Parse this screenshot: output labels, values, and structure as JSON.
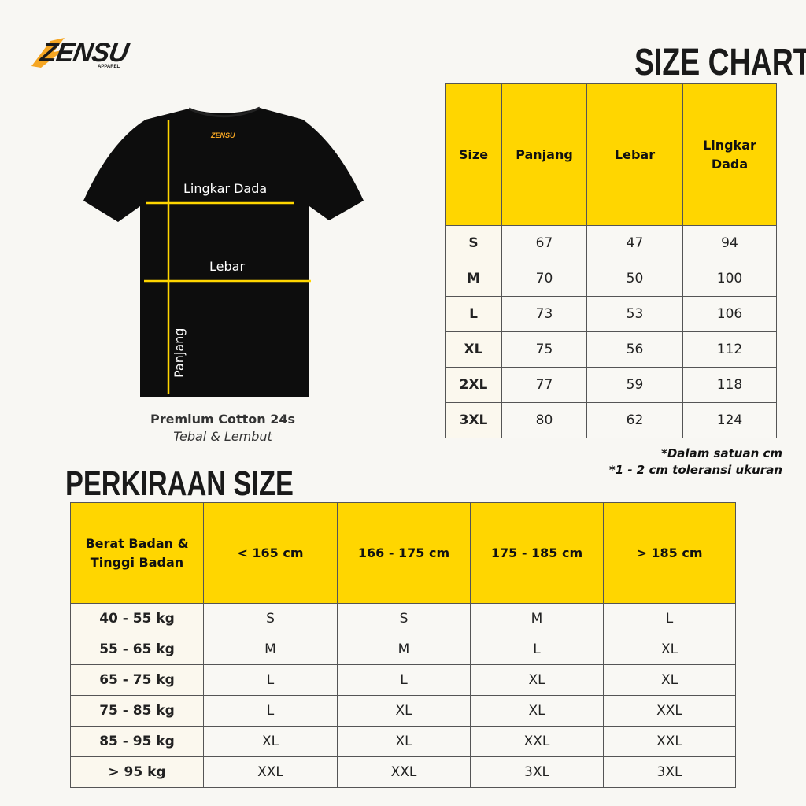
{
  "brand": {
    "name": "ZENSU",
    "sub": "APPAREL"
  },
  "size_chart": {
    "title": "SIZE CHART",
    "headers": [
      "Size",
      "Panjang",
      "Lebar",
      "Lingkar Dada"
    ],
    "rows": [
      [
        "S",
        "67",
        "47",
        "94"
      ],
      [
        "M",
        "70",
        "50",
        "100"
      ],
      [
        "L",
        "73",
        "53",
        "106"
      ],
      [
        "XL",
        "75",
        "56",
        "112"
      ],
      [
        "2XL",
        "77",
        "59",
        "118"
      ],
      [
        "3XL",
        "80",
        "62",
        "124"
      ]
    ],
    "notes": [
      "*Dalam satuan cm",
      "*1 - 2 cm toleransi ukuran"
    ]
  },
  "shirt": {
    "labels": {
      "chest": "Lingkar Dada",
      "width": "Lebar",
      "length": "Panjang"
    },
    "material": "Premium Cotton 24s",
    "material_desc": "Tebal & Lembut"
  },
  "estimate": {
    "title": "PERKIRAAN SIZE",
    "headers": [
      "Berat Badan & Tinggi Badan",
      "< 165 cm",
      "166 - 175 cm",
      "175 - 185 cm",
      "> 185 cm"
    ],
    "rows": [
      [
        "40 - 55 kg",
        "S",
        "S",
        "M",
        "L"
      ],
      [
        "55 - 65 kg",
        "M",
        "M",
        "L",
        "XL"
      ],
      [
        "65 - 75 kg",
        "L",
        "L",
        "XL",
        "XL"
      ],
      [
        "75 - 85 kg",
        "L",
        "XL",
        "XL",
        "XXL"
      ],
      [
        "85 - 95 kg",
        "XL",
        "XL",
        "XXL",
        "XXL"
      ],
      [
        "> 95 kg",
        "XXL",
        "XXL",
        "3XL",
        "3XL"
      ]
    ]
  },
  "colors": {
    "accent": "#ffd600",
    "background": "#f8f7f3",
    "shirt": "#0d0d0d",
    "logo_orange": "#f5a623"
  }
}
